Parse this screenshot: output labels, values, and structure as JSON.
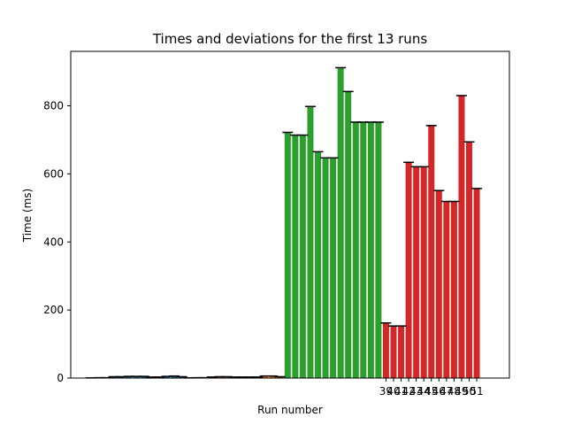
{
  "chart_data": {
    "type": "bar",
    "title": "Times and deviations for the first 13 runs",
    "xlabel": "Run number",
    "ylabel": "Time (ms)",
    "ylim": [
      0,
      960
    ],
    "yticks": [
      0,
      200,
      400,
      600,
      800
    ],
    "x_tick_labels": [
      "39",
      "40",
      "41",
      "42",
      "43",
      "44",
      "45",
      "46",
      "47",
      "48",
      "49",
      "50",
      "51"
    ],
    "error_bar_color": "#000000",
    "series": [
      {
        "color": "#1f77b4",
        "values": [
          0.5,
          1,
          1,
          4,
          4,
          5,
          5,
          5,
          3,
          3,
          5,
          6,
          4
        ]
      },
      {
        "color": "#ff7f0e",
        "values": [
          0.5,
          1,
          1,
          3,
          4,
          4,
          3,
          3,
          3,
          3,
          6,
          6,
          4
        ]
      },
      {
        "color": "#2ca02c",
        "values": [
          722,
          714,
          714,
          798,
          665,
          647,
          647,
          912,
          842,
          752,
          752,
          752,
          752
        ]
      },
      {
        "color": "#d62728",
        "values": [
          162,
          153,
          153,
          634,
          621,
          621,
          742,
          551,
          519,
          519,
          830,
          694,
          557
        ]
      }
    ]
  }
}
